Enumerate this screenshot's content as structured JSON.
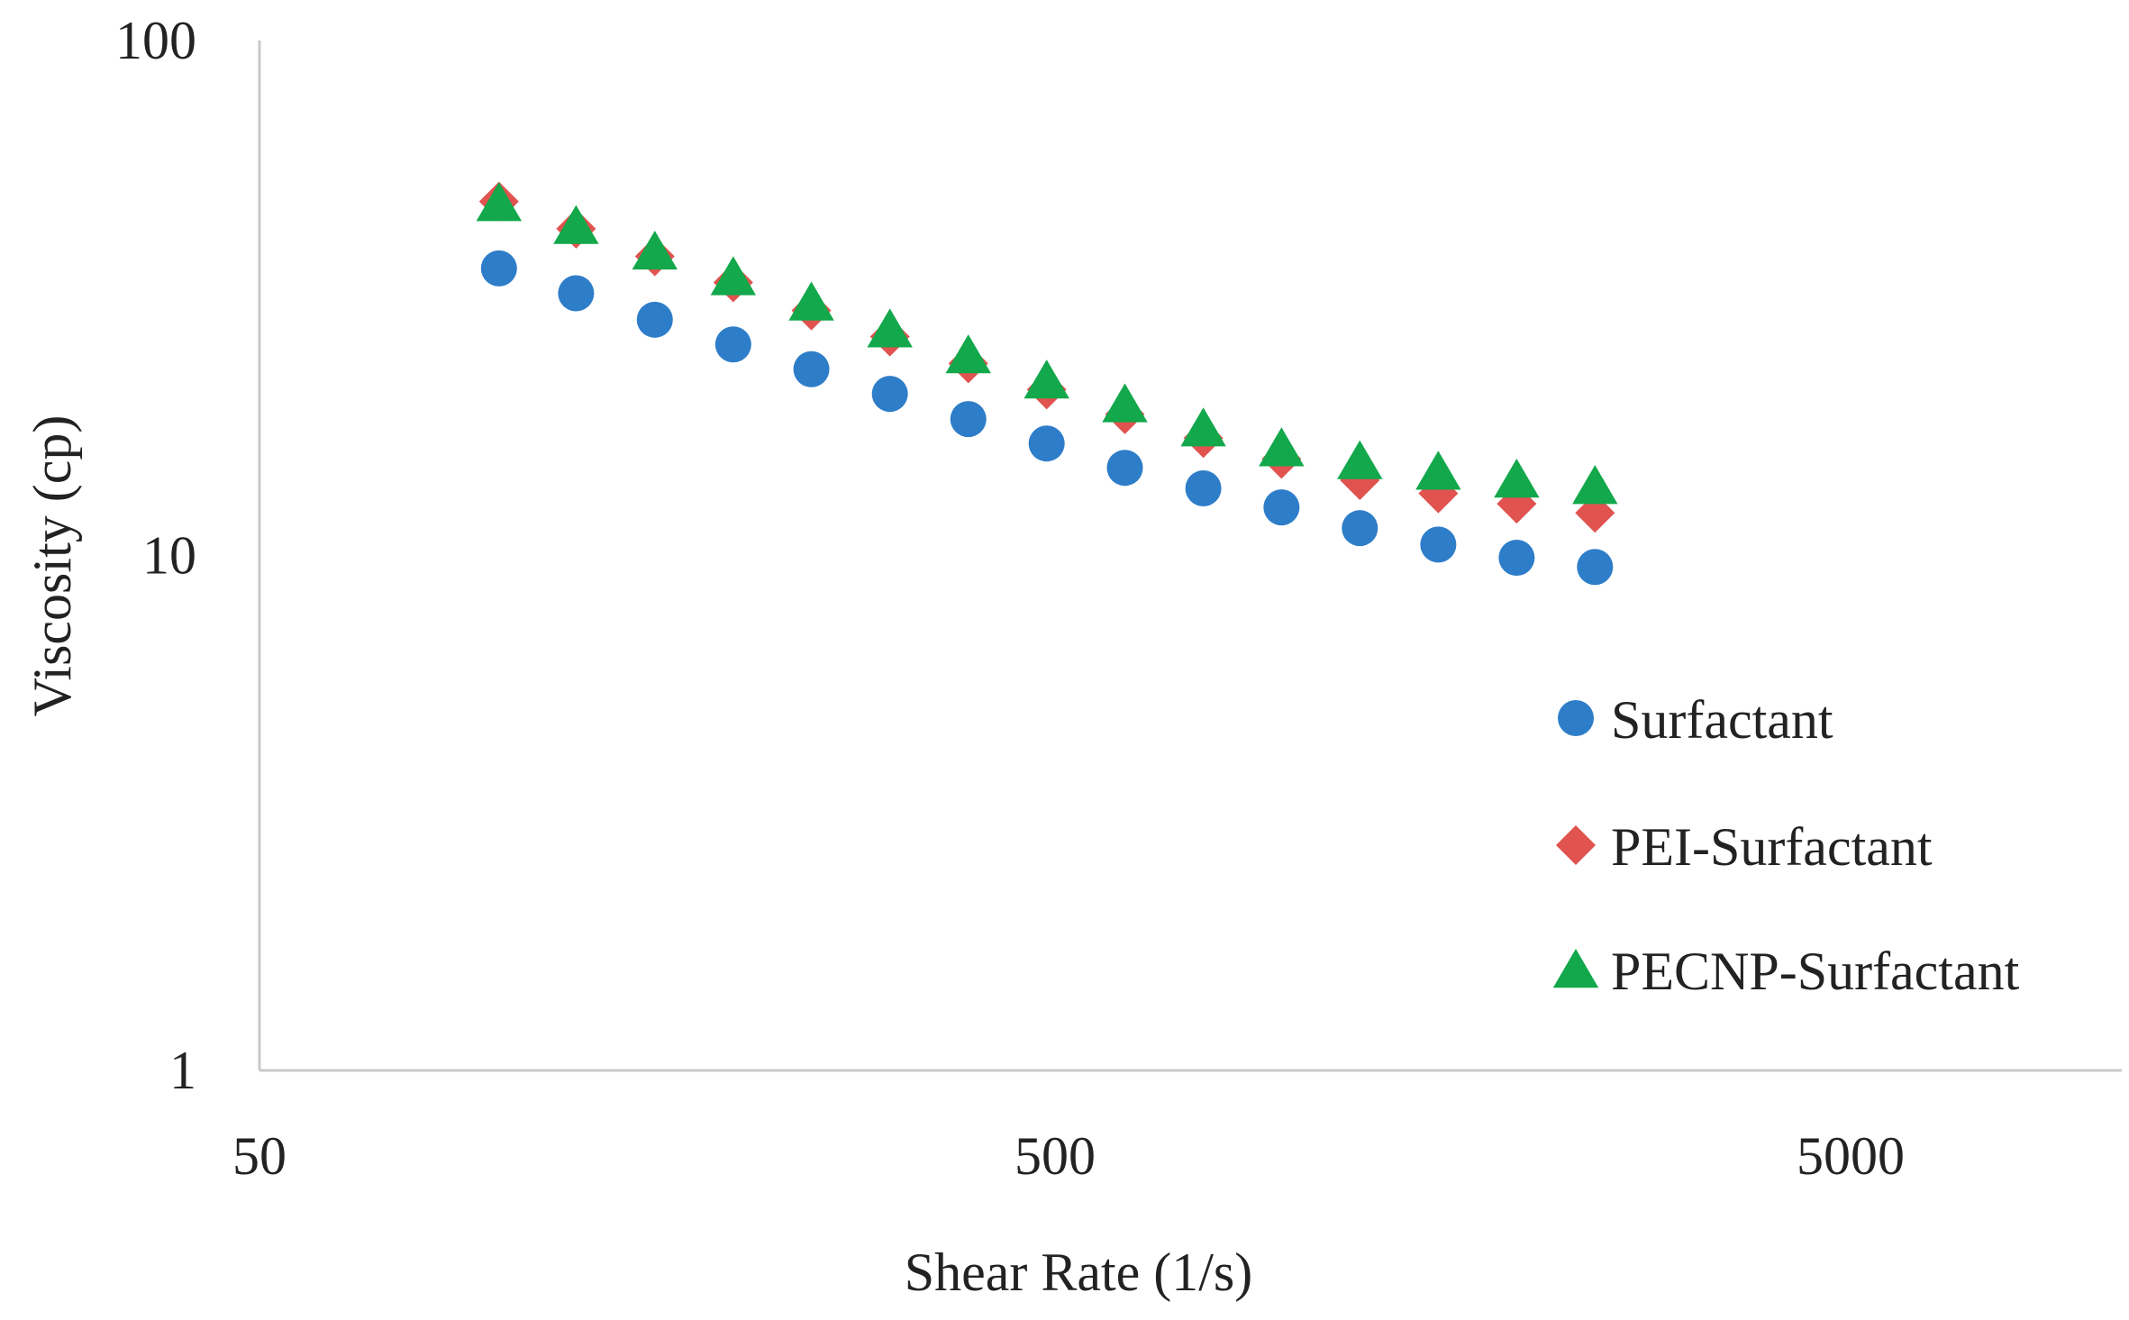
{
  "chart_data": {
    "type": "scatter",
    "title": "",
    "xlabel": "Shear Rate (1/s)",
    "ylabel": "Viscosity (cp)",
    "xscale": "log",
    "yscale": "log",
    "xlim": [
      50,
      10000
    ],
    "ylim": [
      1,
      100
    ],
    "xticks": [
      50,
      500,
      5000
    ],
    "xtick_labels": [
      "50",
      "500",
      "5000"
    ],
    "yticks": [
      1,
      10,
      100
    ],
    "ytick_labels": [
      "1",
      "10",
      "100"
    ],
    "grid": false,
    "legend_position": "right",
    "x": [
      100,
      125,
      157,
      197,
      247,
      310,
      389,
      488,
      612,
      768,
      963,
      1208,
      1516,
      1902,
      2386
    ],
    "series": [
      {
        "name": "Surfactant",
        "marker": "circle",
        "color": "#2E7DC9",
        "values": [
          36.1,
          32.3,
          28.7,
          25.7,
          23.0,
          20.6,
          18.4,
          16.5,
          14.8,
          13.5,
          12.4,
          11.3,
          10.5,
          9.9,
          9.5
        ]
      },
      {
        "name": "PEI-Surfactant",
        "marker": "diamond",
        "color": "#E0534F",
        "values": [
          48.7,
          43.1,
          38.1,
          33.9,
          29.9,
          26.6,
          23.6,
          21.0,
          18.8,
          16.9,
          15.4,
          14.0,
          13.2,
          12.6,
          12.1
        ]
      },
      {
        "name": "PECNP-Surfactant",
        "marker": "triangle",
        "color": "#12A84B",
        "values": [
          48.2,
          43.5,
          38.8,
          34.6,
          30.9,
          27.4,
          24.4,
          21.8,
          19.6,
          17.6,
          16.1,
          15.2,
          14.5,
          14.0,
          13.6
        ]
      }
    ]
  }
}
